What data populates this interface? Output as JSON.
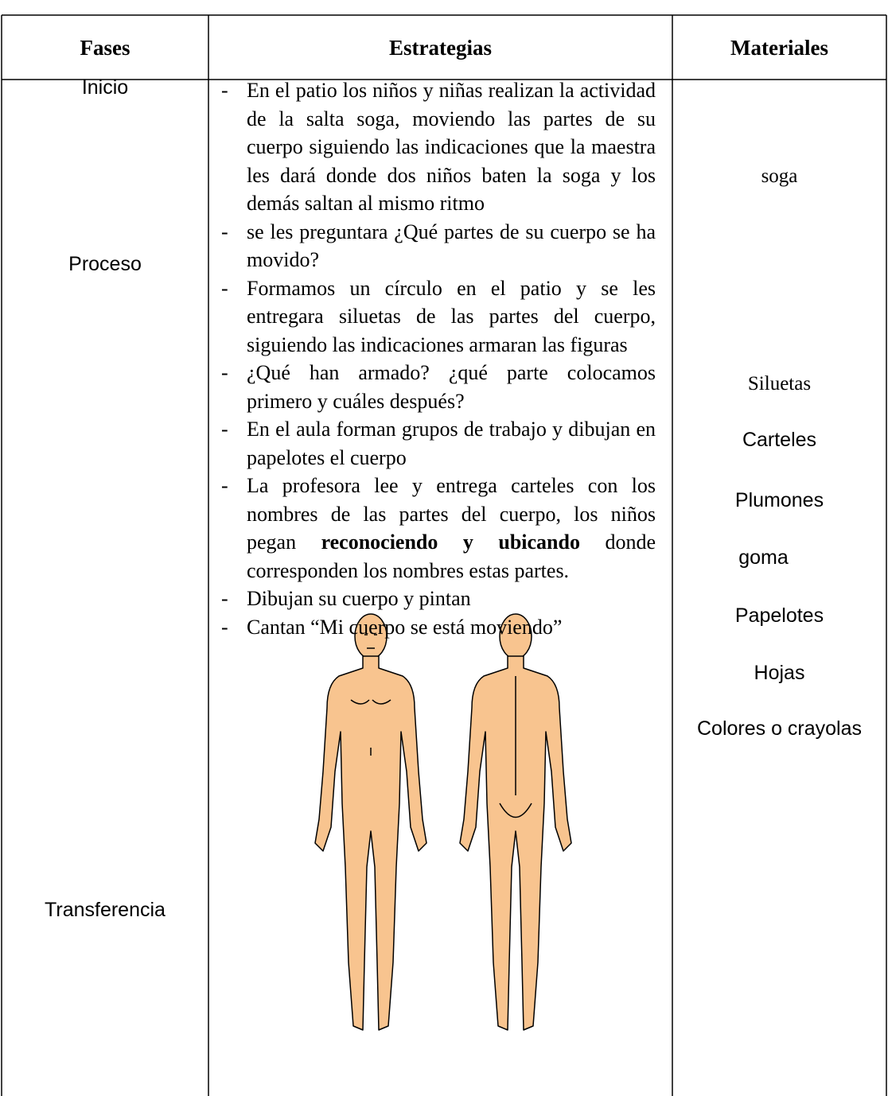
{
  "table": {
    "headers": [
      "Fases",
      "Estrategias",
      "Materiales"
    ],
    "phases": [
      "Inicio",
      "Proceso",
      "Transferencia"
    ],
    "strategies": [
      [
        "En el patio los niños y niñas realizan la actividad de la salta soga, moviendo las partes de su cuerpo siguiendo las indicaciones que la maestra les dará donde dos niños baten la soga y los demás saltan al mismo ritmo"
      ],
      [
        "se les preguntara ¿Qué partes de su cuerpo se ha movido?"
      ],
      [
        "Formamos un círculo en el patio y se les entregara siluetas de las partes del cuerpo, siguiendo las indicaciones armaran las figuras"
      ],
      [
        "¿Qué han armado? ¿qué parte colocamos primero y cuáles después?"
      ],
      [
        "En el aula forman grupos de trabajo y dibujan en papelotes el cuerpo"
      ],
      [
        "La profesora lee y entrega carteles con los nombres de las partes del cuerpo, los niños pegan ",
        "reconociendo y ubicando",
        " donde corresponden los nombres estas partes."
      ],
      [
        "Dibujan su cuerpo y pintan"
      ],
      [
        "Cantan “Mi cuerpo se está moviendo”"
      ]
    ],
    "materials": [
      "soga",
      "Siluetas",
      "Carteles",
      "Plumones",
      "goma",
      "Papelotes",
      "Hojas",
      "Colores o crayolas"
    ]
  }
}
